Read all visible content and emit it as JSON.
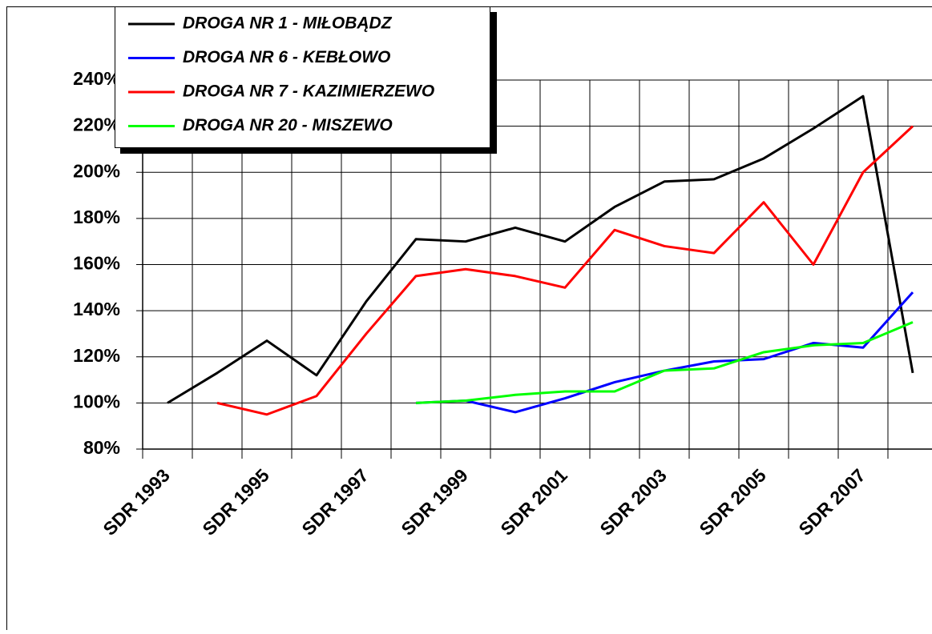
{
  "chart_data": {
    "type": "line",
    "categories": [
      "SDR 1993",
      null,
      "SDR 1995",
      null,
      "SDR 1997",
      null,
      "SDR 1999",
      null,
      "SDR 2001",
      null,
      "SDR 2003",
      null,
      "SDR 2005",
      null,
      "SDR 2007",
      null
    ],
    "series": [
      {
        "name": "DROGA NR 1 - MIŁOBĄDZ",
        "color": "#000000",
        "values": [
          100,
          113,
          127,
          112,
          144,
          171,
          170,
          176,
          170,
          185,
          196,
          197,
          206,
          219,
          233,
          113
        ]
      },
      {
        "name": "DROGA NR 6 - KEBŁOWO",
        "color": "#0000ff",
        "values": [
          null,
          null,
          null,
          null,
          null,
          100,
          101,
          96,
          102,
          109,
          114,
          118,
          119,
          126,
          124,
          148
        ]
      },
      {
        "name": "DROGA NR 7 - KAZIMIERZEWO",
        "color": "#ff0000",
        "values": [
          null,
          100,
          95,
          103,
          130,
          155,
          158,
          155,
          150,
          175,
          168,
          165,
          187,
          160,
          200,
          220
        ]
      },
      {
        "name": "DROGA NR 20 - MISZEWO",
        "color": "#00ff00",
        "values": [
          null,
          null,
          null,
          null,
          null,
          100,
          101,
          103.5,
          105,
          105,
          114,
          115,
          122,
          125,
          126,
          135
        ]
      }
    ],
    "ylim": [
      80,
      240
    ],
    "yticks": [
      {
        "value": 80,
        "label": "80%"
      },
      {
        "value": 100,
        "label": "100%"
      },
      {
        "value": 120,
        "label": "120%"
      },
      {
        "value": 140,
        "label": "140%"
      },
      {
        "value": 160,
        "label": "160%"
      },
      {
        "value": 180,
        "label": "180%"
      },
      {
        "value": 200,
        "label": "200%"
      },
      {
        "value": 220,
        "label": "220%"
      },
      {
        "value": 240,
        "label": "240%"
      }
    ],
    "grid": true
  }
}
